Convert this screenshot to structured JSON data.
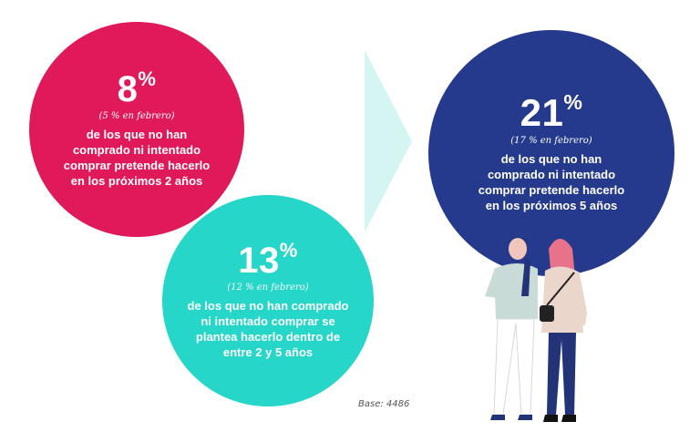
{
  "colors": {
    "pink": "#e0195a",
    "teal": "#25d6c9",
    "navy": "#253a8c",
    "arrow": "#d4f5f2"
  },
  "stat1": {
    "value": "8",
    "pct": "%",
    "note": "(5 % en febrero)",
    "lines": [
      "de los que no han",
      "comprado ni intentado",
      "comprar pretende hacerlo",
      "en los próximos 2 años"
    ]
  },
  "stat2": {
    "value": "13",
    "pct": "%",
    "note": "(12 % en febrero)",
    "lines": [
      "de los que no han comprado",
      "ni intentado comprar se",
      "plantea hacerlo dentro de",
      "entre  2 y 5 años"
    ]
  },
  "stat3": {
    "value": "21",
    "pct": "%",
    "note": "(17 % en febrero)",
    "lines": [
      "de los que no han",
      "comprado ni intentado",
      "comprar pretende hacerlo",
      "en los próximos 5 años"
    ]
  },
  "base": "Base: 4486"
}
